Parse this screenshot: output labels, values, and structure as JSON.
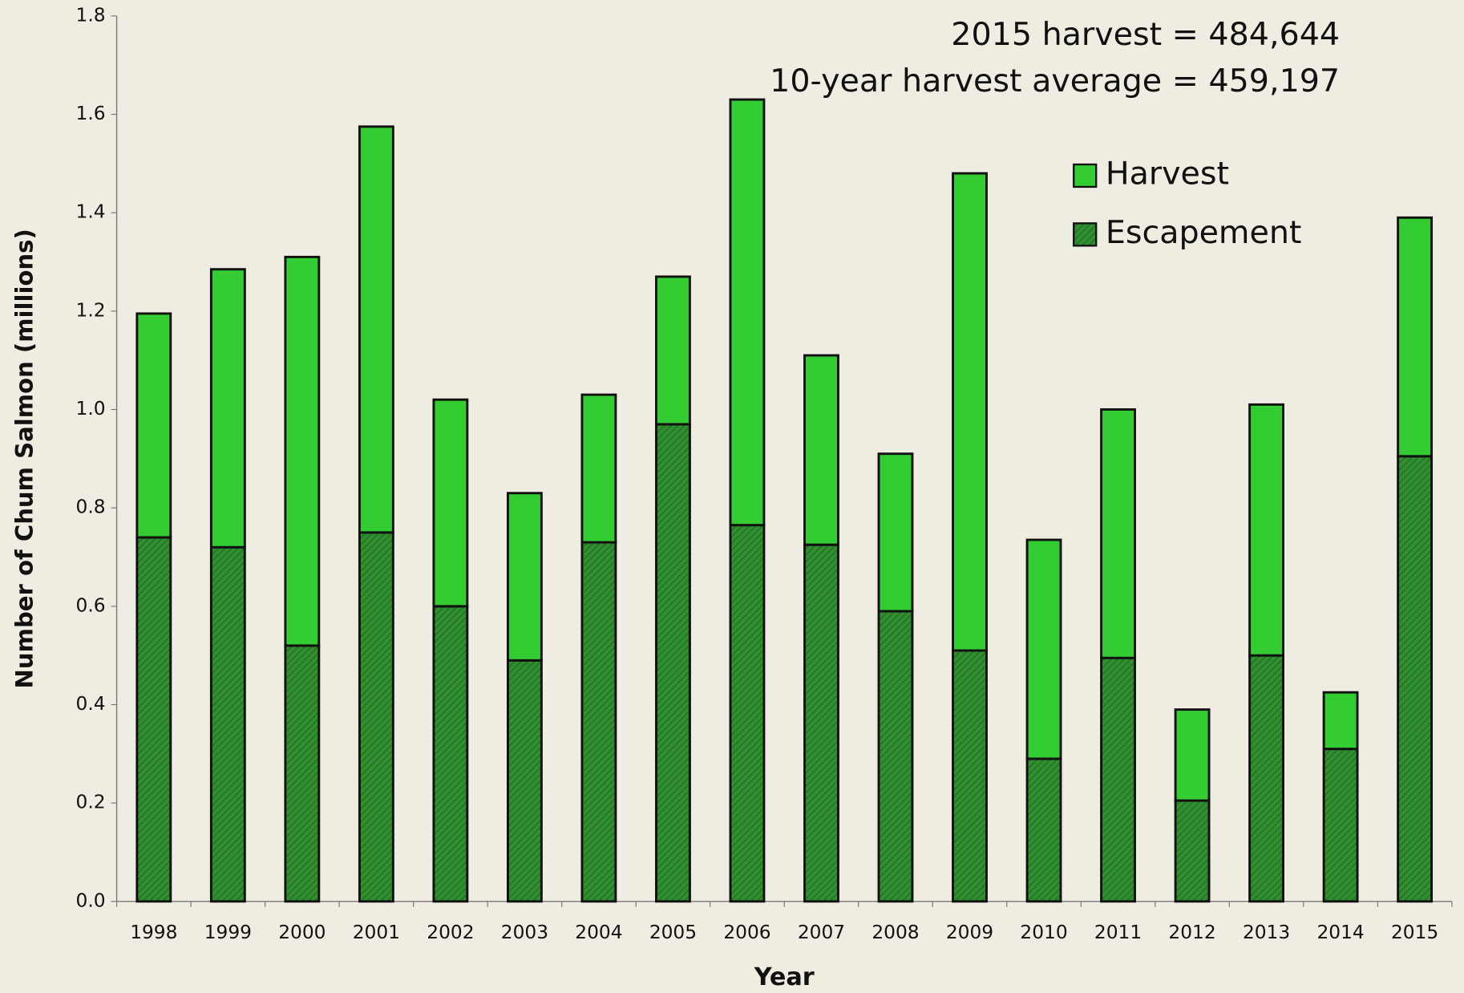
{
  "chart_data": {
    "type": "stacked_bar",
    "annotations": [
      "2015 harvest = 484,644",
      "10-year harvest average = 459,197"
    ],
    "x_label": "Year",
    "y_label": "Number of Chum Salmon (millions)",
    "categories": [
      "1998",
      "1999",
      "2000",
      "2001",
      "2002",
      "2003",
      "2004",
      "2005",
      "2006",
      "2007",
      "2008",
      "2009",
      "2010",
      "2011",
      "2012",
      "2013",
      "2014",
      "2015"
    ],
    "series": [
      {
        "name": "Escapement",
        "color": "#2f8f2f",
        "hatch": true,
        "values": [
          0.74,
          0.72,
          0.52,
          0.75,
          0.6,
          0.49,
          0.73,
          0.97,
          0.765,
          0.725,
          0.59,
          0.51,
          0.29,
          0.495,
          0.205,
          0.5,
          0.31,
          0.905
        ]
      },
      {
        "name": "Harvest",
        "color": "#33cc33",
        "hatch": false,
        "values": [
          0.455,
          0.565,
          0.79,
          0.825,
          0.42,
          0.34,
          0.3,
          0.3,
          0.865,
          0.385,
          0.32,
          0.97,
          0.445,
          0.505,
          0.185,
          0.51,
          0.115,
          0.485
        ]
      }
    ],
    "ylim": [
      0,
      1.8
    ],
    "yticks": [
      {
        "value": 0,
        "label": "0.0"
      },
      0.2,
      0.4,
      0.6,
      0.8,
      {
        "value": 1,
        "label": "1.0"
      },
      1.2,
      1.4,
      1.6,
      1.8
    ],
    "legend": "upper right"
  }
}
